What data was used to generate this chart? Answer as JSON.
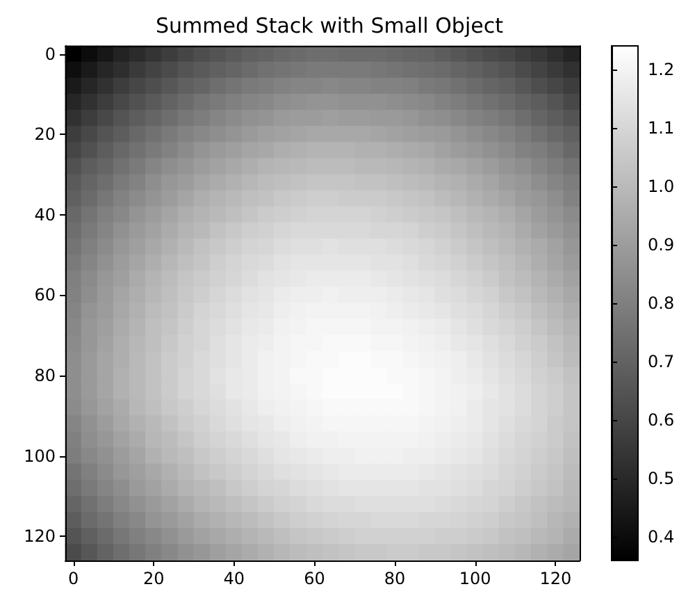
{
  "chart_data": {
    "type": "heatmap",
    "title": "Summed Stack with Small Object",
    "categories": [
      "0",
      null,
      null,
      null,
      null,
      "20",
      null,
      null,
      null,
      null,
      "40",
      null,
      null,
      null,
      null,
      "60",
      null,
      null,
      null,
      null,
      "80",
      null,
      null,
      null,
      null,
      "100",
      null,
      null,
      null,
      null,
      "120",
      null
    ],
    "y_categories": [
      "0",
      null,
      null,
      null,
      null,
      "20",
      null,
      null,
      null,
      null,
      "40",
      null,
      null,
      null,
      null,
      "60",
      null,
      null,
      null,
      null,
      "80",
      null,
      null,
      null,
      null,
      "100",
      null,
      null,
      null,
      null,
      "120",
      null
    ],
    "cells": [
      [
        0.36,
        0.4,
        0.44,
        0.48,
        0.51,
        0.54,
        0.57,
        0.6,
        0.63,
        0.65,
        0.67,
        0.69,
        0.7,
        0.72,
        0.73,
        0.74,
        0.74,
        0.73,
        0.73,
        0.73,
        0.72,
        0.71,
        0.7,
        0.68,
        0.66,
        0.64,
        0.62,
        0.6,
        0.57,
        0.55,
        0.52,
        0.48
      ],
      [
        0.41,
        0.45,
        0.49,
        0.52,
        0.56,
        0.59,
        0.62,
        0.65,
        0.67,
        0.69,
        0.71,
        0.73,
        0.75,
        0.76,
        0.77,
        0.78,
        0.78,
        0.78,
        0.78,
        0.77,
        0.76,
        0.75,
        0.74,
        0.73,
        0.71,
        0.69,
        0.67,
        0.65,
        0.62,
        0.59,
        0.56,
        0.53
      ],
      [
        0.45,
        0.49,
        0.53,
        0.57,
        0.6,
        0.63,
        0.66,
        0.69,
        0.71,
        0.74,
        0.76,
        0.78,
        0.79,
        0.81,
        0.82,
        0.82,
        0.83,
        0.82,
        0.82,
        0.81,
        0.81,
        0.8,
        0.78,
        0.77,
        0.75,
        0.73,
        0.71,
        0.69,
        0.66,
        0.63,
        0.6,
        0.57
      ],
      [
        0.49,
        0.53,
        0.57,
        0.61,
        0.64,
        0.67,
        0.7,
        0.73,
        0.76,
        0.78,
        0.8,
        0.82,
        0.83,
        0.85,
        0.86,
        0.87,
        0.87,
        0.86,
        0.86,
        0.86,
        0.85,
        0.84,
        0.83,
        0.81,
        0.79,
        0.77,
        0.75,
        0.73,
        0.7,
        0.68,
        0.65,
        0.61
      ],
      [
        0.53,
        0.57,
        0.61,
        0.65,
        0.68,
        0.71,
        0.74,
        0.77,
        0.79,
        0.82,
        0.84,
        0.86,
        0.87,
        0.89,
        0.9,
        0.9,
        0.91,
        0.9,
        0.9,
        0.89,
        0.89,
        0.88,
        0.86,
        0.85,
        0.83,
        0.81,
        0.79,
        0.77,
        0.74,
        0.71,
        0.68,
        0.65
      ],
      [
        0.57,
        0.61,
        0.65,
        0.68,
        0.72,
        0.75,
        0.78,
        0.81,
        0.83,
        0.85,
        0.87,
        0.89,
        0.91,
        0.92,
        0.93,
        0.94,
        0.94,
        0.94,
        0.94,
        0.93,
        0.92,
        0.91,
        0.9,
        0.89,
        0.87,
        0.85,
        0.83,
        0.81,
        0.78,
        0.75,
        0.72,
        0.69
      ],
      [
        0.6,
        0.64,
        0.68,
        0.72,
        0.75,
        0.78,
        0.81,
        0.84,
        0.87,
        0.89,
        0.91,
        0.93,
        0.94,
        0.96,
        0.97,
        0.98,
        0.98,
        0.98,
        0.97,
        0.97,
        0.96,
        0.95,
        0.94,
        0.92,
        0.9,
        0.88,
        0.86,
        0.84,
        0.81,
        0.79,
        0.76,
        0.72
      ],
      [
        0.64,
        0.68,
        0.71,
        0.75,
        0.78,
        0.82,
        0.85,
        0.87,
        0.9,
        0.92,
        0.94,
        0.96,
        0.98,
        0.99,
        1.0,
        1.01,
        1.01,
        1.01,
        1.0,
        1.0,
        0.99,
        0.98,
        0.97,
        0.95,
        0.94,
        0.92,
        0.9,
        0.87,
        0.85,
        0.82,
        0.79,
        0.76
      ],
      [
        0.67,
        0.71,
        0.74,
        0.78,
        0.81,
        0.85,
        0.88,
        0.9,
        0.93,
        0.95,
        0.97,
        0.99,
        1.01,
        1.02,
        1.03,
        1.04,
        1.04,
        1.04,
        1.03,
        1.03,
        1.02,
        1.01,
        1.0,
        0.98,
        0.97,
        0.95,
        0.93,
        0.9,
        0.88,
        0.85,
        0.82,
        0.79
      ],
      [
        0.69,
        0.73,
        0.77,
        0.81,
        0.84,
        0.87,
        0.9,
        0.93,
        0.96,
        0.98,
        1.0,
        1.02,
        1.03,
        1.05,
        1.06,
        1.07,
        1.07,
        1.06,
        1.06,
        1.06,
        1.05,
        1.04,
        1.03,
        1.01,
        0.99,
        0.97,
        0.95,
        0.93,
        0.9,
        0.88,
        0.85,
        0.81
      ],
      [
        0.72,
        0.76,
        0.8,
        0.83,
        0.87,
        0.9,
        0.93,
        0.96,
        0.98,
        1.0,
        1.02,
        1.04,
        1.06,
        1.07,
        1.08,
        1.09,
        1.09,
        1.09,
        1.09,
        1.08,
        1.07,
        1.06,
        1.05,
        1.04,
        1.02,
        1.0,
        0.98,
        0.96,
        0.93,
        0.9,
        0.87,
        0.84
      ],
      [
        0.74,
        0.78,
        0.82,
        0.86,
        0.89,
        0.92,
        0.95,
        0.98,
        1.0,
        1.03,
        1.05,
        1.07,
        1.08,
        1.1,
        1.11,
        1.11,
        1.11,
        1.11,
        1.11,
        1.1,
        1.1,
        1.09,
        1.07,
        1.06,
        1.04,
        1.02,
        1.0,
        0.98,
        0.95,
        0.92,
        0.89,
        0.86
      ],
      [
        0.76,
        0.8,
        0.84,
        0.88,
        0.91,
        0.94,
        0.97,
        1.0,
        1.03,
        1.05,
        1.07,
        1.09,
        1.1,
        1.12,
        1.13,
        1.13,
        1.14,
        1.13,
        1.13,
        1.13,
        1.12,
        1.11,
        1.1,
        1.08,
        1.06,
        1.04,
        1.02,
        1.0,
        0.97,
        0.95,
        0.92,
        0.88
      ],
      [
        0.78,
        0.82,
        0.86,
        0.9,
        0.93,
        0.96,
        0.99,
        1.02,
        1.04,
        1.07,
        1.09,
        1.11,
        1.12,
        1.14,
        1.15,
        1.15,
        1.15,
        1.15,
        1.15,
        1.14,
        1.14,
        1.13,
        1.11,
        1.1,
        1.08,
        1.06,
        1.04,
        1.02,
        0.99,
        0.96,
        0.93,
        0.9
      ],
      [
        0.8,
        0.84,
        0.88,
        0.91,
        0.95,
        0.98,
        1.01,
        1.04,
        1.06,
        1.08,
        1.1,
        1.12,
        1.14,
        1.15,
        1.16,
        1.17,
        1.17,
        1.17,
        1.17,
        1.16,
        1.15,
        1.14,
        1.13,
        1.12,
        1.1,
        1.08,
        1.06,
        1.03,
        1.01,
        0.98,
        0.95,
        0.92
      ],
      [
        0.81,
        0.85,
        0.89,
        0.93,
        0.96,
        0.99,
        1.02,
        1.05,
        1.07,
        1.1,
        1.12,
        1.14,
        1.15,
        1.17,
        1.18,
        1.18,
        1.19,
        1.18,
        1.18,
        1.18,
        1.17,
        1.16,
        1.15,
        1.13,
        1.12,
        1.1,
        1.08,
        1.05,
        1.03,
        1.0,
        0.97,
        0.94
      ],
      [
        0.82,
        0.87,
        0.9,
        0.94,
        0.97,
        1.01,
        1.03,
        1.06,
        1.09,
        1.11,
        1.13,
        1.15,
        1.16,
        1.18,
        1.19,
        1.2,
        1.2,
        1.2,
        1.2,
        1.19,
        1.18,
        1.17,
        1.16,
        1.15,
        1.13,
        1.12,
        1.1,
        1.07,
        1.05,
        1.02,
        0.99,
        0.96
      ],
      [
        0.83,
        0.88,
        0.91,
        0.95,
        0.98,
        1.02,
        1.04,
        1.07,
        1.1,
        1.12,
        1.14,
        1.16,
        1.17,
        1.19,
        1.2,
        1.21,
        1.21,
        1.21,
        1.21,
        1.2,
        1.2,
        1.19,
        1.18,
        1.17,
        1.15,
        1.13,
        1.11,
        1.09,
        1.07,
        1.04,
        1.01,
        0.98
      ],
      [
        0.84,
        0.88,
        0.92,
        0.96,
        0.99,
        1.02,
        1.05,
        1.08,
        1.1,
        1.13,
        1.15,
        1.17,
        1.18,
        1.2,
        1.21,
        1.21,
        1.22,
        1.22,
        1.22,
        1.21,
        1.21,
        1.2,
        1.19,
        1.18,
        1.16,
        1.15,
        1.13,
        1.11,
        1.08,
        1.06,
        1.03,
        1.0
      ],
      [
        0.85,
        0.89,
        0.93,
        0.96,
        1.0,
        1.03,
        1.06,
        1.08,
        1.11,
        1.13,
        1.15,
        1.17,
        1.19,
        1.2,
        1.21,
        1.22,
        1.22,
        1.23,
        1.23,
        1.22,
        1.22,
        1.21,
        1.2,
        1.19,
        1.18,
        1.16,
        1.14,
        1.12,
        1.1,
        1.07,
        1.04,
        1.01
      ],
      [
        0.85,
        0.89,
        0.93,
        0.97,
        1.0,
        1.03,
        1.06,
        1.09,
        1.11,
        1.14,
        1.16,
        1.17,
        1.19,
        1.2,
        1.22,
        1.22,
        1.23,
        1.23,
        1.23,
        1.23,
        1.22,
        1.22,
        1.21,
        1.2,
        1.18,
        1.17,
        1.15,
        1.13,
        1.11,
        1.08,
        1.06,
        1.03
      ],
      [
        0.85,
        0.89,
        0.93,
        0.97,
        1.0,
        1.03,
        1.06,
        1.09,
        1.11,
        1.13,
        1.16,
        1.17,
        1.19,
        1.2,
        1.21,
        1.22,
        1.23,
        1.23,
        1.23,
        1.23,
        1.23,
        1.22,
        1.21,
        1.2,
        1.19,
        1.18,
        1.16,
        1.14,
        1.12,
        1.09,
        1.07,
        1.04
      ],
      [
        0.84,
        0.88,
        0.92,
        0.95,
        0.99,
        1.02,
        1.05,
        1.07,
        1.1,
        1.12,
        1.14,
        1.16,
        1.18,
        1.19,
        1.2,
        1.21,
        1.22,
        1.22,
        1.22,
        1.22,
        1.22,
        1.22,
        1.21,
        1.2,
        1.19,
        1.17,
        1.15,
        1.14,
        1.12,
        1.09,
        1.07,
        1.04
      ],
      [
        0.82,
        0.86,
        0.9,
        0.94,
        0.97,
        1.0,
        1.03,
        1.06,
        1.08,
        1.11,
        1.13,
        1.15,
        1.16,
        1.18,
        1.19,
        1.2,
        1.21,
        1.21,
        1.21,
        1.21,
        1.21,
        1.21,
        1.2,
        1.19,
        1.18,
        1.17,
        1.15,
        1.13,
        1.11,
        1.09,
        1.06,
        1.04
      ],
      [
        0.8,
        0.85,
        0.88,
        0.92,
        0.95,
        0.99,
        1.01,
        1.04,
        1.07,
        1.09,
        1.11,
        1.13,
        1.15,
        1.16,
        1.18,
        1.19,
        1.19,
        1.2,
        1.2,
        1.2,
        1.2,
        1.2,
        1.19,
        1.18,
        1.17,
        1.16,
        1.14,
        1.12,
        1.1,
        1.08,
        1.06,
        1.03
      ],
      [
        0.79,
        0.83,
        0.86,
        0.9,
        0.93,
        0.97,
        1.0,
        1.02,
        1.05,
        1.07,
        1.09,
        1.11,
        1.13,
        1.15,
        1.16,
        1.17,
        1.18,
        1.18,
        1.19,
        1.19,
        1.19,
        1.18,
        1.18,
        1.17,
        1.16,
        1.15,
        1.13,
        1.11,
        1.09,
        1.07,
        1.05,
        1.02
      ],
      [
        0.76,
        0.8,
        0.84,
        0.88,
        0.91,
        0.94,
        0.97,
        1.0,
        1.03,
        1.05,
        1.07,
        1.09,
        1.11,
        1.13,
        1.14,
        1.15,
        1.16,
        1.17,
        1.17,
        1.17,
        1.17,
        1.17,
        1.16,
        1.15,
        1.14,
        1.13,
        1.12,
        1.1,
        1.08,
        1.06,
        1.04,
        1.01
      ],
      [
        0.74,
        0.78,
        0.82,
        0.85,
        0.89,
        0.92,
        0.95,
        0.98,
        1.0,
        1.02,
        1.05,
        1.07,
        1.09,
        1.1,
        1.12,
        1.13,
        1.14,
        1.15,
        1.15,
        1.15,
        1.15,
        1.15,
        1.14,
        1.14,
        1.13,
        1.12,
        1.1,
        1.09,
        1.07,
        1.05,
        1.03,
        1.0
      ],
      [
        0.71,
        0.75,
        0.79,
        0.83,
        0.86,
        0.89,
        0.92,
        0.95,
        0.98,
        1.0,
        1.02,
        1.04,
        1.06,
        1.08,
        1.09,
        1.11,
        1.12,
        1.12,
        1.13,
        1.13,
        1.13,
        1.13,
        1.13,
        1.12,
        1.11,
        1.1,
        1.09,
        1.07,
        1.05,
        1.03,
        1.01,
        0.99
      ],
      [
        0.68,
        0.73,
        0.76,
        0.8,
        0.83,
        0.87,
        0.89,
        0.92,
        0.95,
        0.97,
        0.99,
        1.01,
        1.03,
        1.05,
        1.07,
        1.08,
        1.09,
        1.1,
        1.1,
        1.11,
        1.11,
        1.11,
        1.1,
        1.1,
        1.09,
        1.08,
        1.07,
        1.05,
        1.04,
        1.02,
        0.99,
        0.97
      ],
      [
        0.65,
        0.69,
        0.73,
        0.77,
        0.8,
        0.83,
        0.86,
        0.89,
        0.92,
        0.94,
        0.96,
        0.98,
        1.0,
        1.02,
        1.04,
        1.05,
        1.06,
        1.07,
        1.08,
        1.08,
        1.08,
        1.08,
        1.08,
        1.07,
        1.07,
        1.06,
        1.05,
        1.03,
        1.02,
        1.0,
        0.98,
        0.95
      ],
      [
        0.62,
        0.66,
        0.7,
        0.74,
        0.77,
        0.8,
        0.83,
        0.86,
        0.88,
        0.91,
        0.93,
        0.95,
        0.97,
        0.99,
        1.01,
        1.02,
        1.03,
        1.04,
        1.05,
        1.05,
        1.06,
        1.06,
        1.05,
        1.05,
        1.04,
        1.03,
        1.02,
        1.01,
        0.99,
        0.97,
        0.95,
        0.93
      ]
    ],
    "clim": [
      0.36,
      1.24
    ],
    "cticks": [
      0.4,
      0.5,
      0.6,
      0.7,
      0.8,
      0.9,
      {
        "value": 1,
        "label": "1.0"
      },
      1.1,
      1.2
    ]
  }
}
